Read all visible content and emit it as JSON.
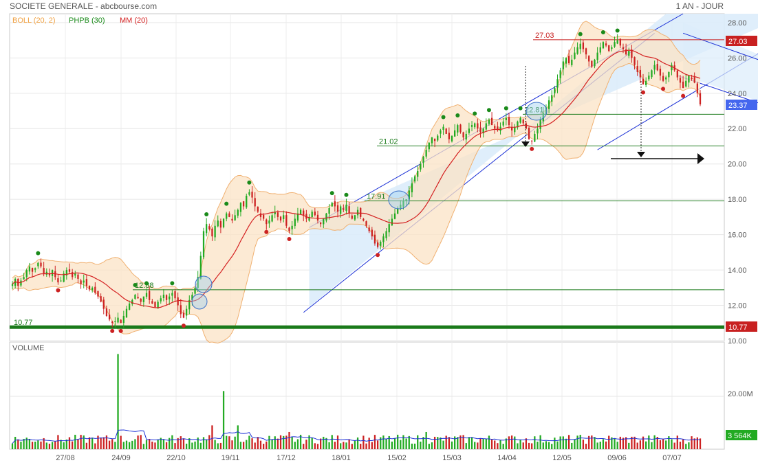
{
  "header": {
    "title": "SOCIETE GENERALE - abcbourse.com",
    "period": "1 AN - JOUR"
  },
  "legend": [
    {
      "label": "BOLL (20, 2)",
      "color": "#f0a040"
    },
    {
      "label": "PHPB (30)",
      "color": "#1a8a1a"
    },
    {
      "label": "MM (20)",
      "color": "#d42020"
    }
  ],
  "colors": {
    "bull": "#22aa22",
    "bear": "#cc2222",
    "boll_fill": "#fbe3c6",
    "boll_line": "#f0b070",
    "mm": "#d42020",
    "channel": "#1a2fd6",
    "channel_fill": "#dcecfb",
    "level_green": "#1a7a1a",
    "level_red": "#c82020",
    "price_tag": "#4466ee"
  },
  "volume_panel": {
    "title": "VOLUME",
    "ticks": [
      "20.00M"
    ],
    "last_tag": "3 564K"
  },
  "chart_data": {
    "type": "candlestick",
    "title": "SOCIETE GENERALE",
    "x_ticks": [
      "27/08",
      "24/09",
      "22/10",
      "19/11",
      "17/12",
      "18/01",
      "15/02",
      "15/03",
      "14/04",
      "12/05",
      "09/06",
      "07/07"
    ],
    "y_ticks": [
      "10.00",
      "12.00",
      "14.00",
      "16.00",
      "18.00",
      "20.00",
      "22.00",
      "24.00",
      "26.00",
      "28.00"
    ],
    "ylim": [
      10,
      28.5
    ],
    "last_price": "23.37",
    "horizontal_levels": [
      {
        "value": 27.03,
        "label": "27.03",
        "tag": "27.03",
        "color": "level_red"
      },
      {
        "value": 22.81,
        "label": "22.81"
      },
      {
        "value": 21.02,
        "label": "21.02"
      },
      {
        "value": 17.91,
        "label": "17.91"
      },
      {
        "value": 12.88,
        "label": "12.88"
      },
      {
        "value": 10.77,
        "label": "10.77",
        "tag": "10.77",
        "thick": true
      }
    ],
    "target_arrow_level": 20.3,
    "close_series": [
      13.2,
      13.5,
      13.1,
      13.4,
      13.6,
      14.0,
      14.2,
      13.9,
      14.1,
      14.4,
      14.2,
      13.8,
      13.9,
      13.7,
      14.0,
      13.6,
      13.3,
      13.4,
      13.8,
      14.0,
      13.9,
      13.6,
      13.8,
      13.5,
      13.2,
      13.4,
      13.1,
      12.9,
      13.0,
      12.7,
      12.5,
      12.2,
      11.8,
      11.4,
      11.2,
      11.0,
      11.1,
      11.3,
      11.0,
      11.4,
      11.8,
      12.1,
      12.3,
      12.6,
      12.4,
      12.2,
      12.5,
      12.7,
      12.3,
      12.1,
      11.9,
      12.2,
      12.4,
      12.6,
      12.3,
      12.5,
      12.7,
      12.4,
      12.0,
      11.5,
      11.3,
      11.8,
      12.3,
      12.6,
      13.0,
      13.6,
      14.8,
      16.2,
      16.6,
      16.3,
      15.9,
      16.5,
      16.8,
      16.4,
      16.9,
      17.2,
      17.0,
      16.8,
      17.1,
      17.4,
      17.8,
      17.6,
      18.2,
      18.4,
      18.1,
      17.6,
      17.3,
      17.0,
      16.9,
      16.6,
      16.8,
      17.1,
      17.3,
      17.0,
      16.8,
      17.1,
      16.5,
      16.2,
      16.5,
      16.9,
      17.2,
      17.4,
      17.1,
      16.9,
      17.0,
      17.3,
      17.1,
      16.8,
      16.6,
      16.9,
      17.2,
      17.5,
      17.8,
      17.6,
      17.3,
      17.6,
      17.4,
      17.7,
      17.2,
      16.9,
      17.1,
      17.4,
      17.0,
      16.8,
      16.5,
      16.2,
      15.9,
      15.5,
      15.3,
      15.6,
      15.9,
      16.2,
      16.6,
      16.9,
      17.2,
      17.5,
      17.7,
      17.9,
      18.0,
      18.5,
      18.9,
      19.3,
      19.6,
      20.0,
      20.4,
      20.8,
      21.2,
      21.5,
      21.3,
      21.6,
      21.9,
      22.1,
      21.7,
      21.4,
      21.6,
      21.9,
      22.2,
      21.8,
      21.5,
      21.7,
      22.0,
      22.2,
      22.3,
      22.0,
      21.8,
      22.0,
      22.3,
      22.5,
      22.2,
      22.0,
      21.9,
      22.1,
      22.4,
      22.6,
      22.2,
      21.9,
      22.1,
      22.4,
      22.6,
      22.3,
      22.0,
      21.4,
      21.3,
      21.7,
      22.0,
      22.5,
      22.9,
      23.2,
      23.6,
      23.9,
      24.3,
      24.8,
      25.3,
      25.8,
      26.0,
      25.7,
      25.9,
      26.3,
      26.6,
      26.8,
      26.5,
      26.2,
      25.8,
      25.5,
      25.9,
      26.3,
      26.6,
      26.9,
      26.7,
      26.4,
      26.6,
      26.9,
      27.0,
      26.7,
      26.5,
      26.2,
      26.4,
      26.0,
      25.6,
      25.2,
      24.9,
      24.5,
      24.7,
      25.0,
      25.3,
      25.6,
      25.3,
      25.0,
      24.7,
      24.9,
      25.2,
      25.6,
      25.3,
      24.9,
      24.6,
      24.3,
      24.7,
      25.0,
      24.8,
      24.6,
      24.0,
      23.37
    ],
    "series": [
      {
        "name": "BOLL (20, 2)",
        "type": "band"
      },
      {
        "name": "PHPB (30)",
        "type": "markers"
      },
      {
        "name": "MM (20)",
        "type": "line"
      }
    ]
  }
}
